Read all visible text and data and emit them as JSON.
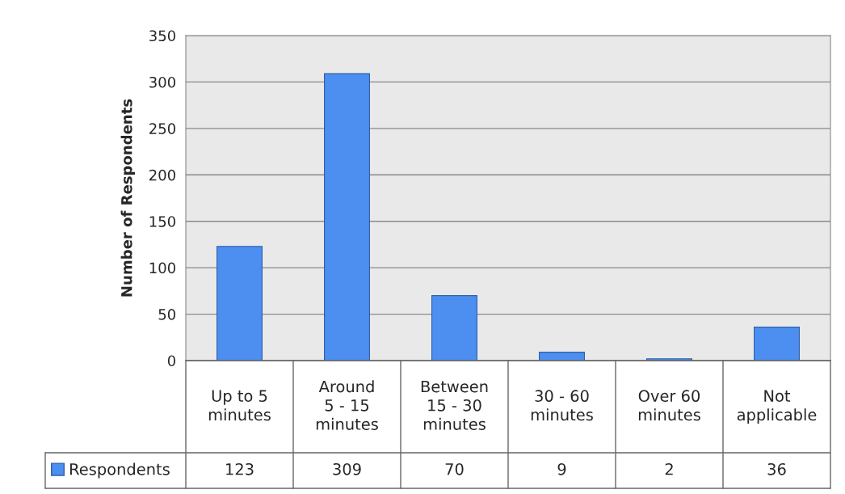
{
  "chart_data": {
    "type": "bar",
    "ylabel": "Number of Respondents",
    "categories": [
      "Up to 5\nminutes",
      "Around\n5 - 15\nminutes",
      "Between\n15 - 30\nminutes",
      "30 - 60\nminutes",
      "Over 60\nminutes",
      "Not\napplicable"
    ],
    "series": [
      {
        "name": "Respondents",
        "color": "#4d8ff0",
        "values": [
          123,
          309,
          70,
          9,
          2,
          36
        ]
      }
    ],
    "ylim": [
      0,
      350
    ],
    "yticks": [
      0,
      50,
      100,
      150,
      200,
      250,
      300,
      350
    ],
    "grid": "y",
    "data_labels": true,
    "legend": "bottom left"
  }
}
